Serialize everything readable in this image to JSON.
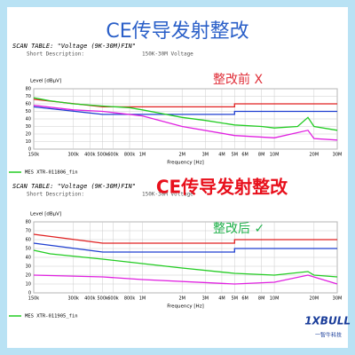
{
  "title": "CE传导发射整改",
  "overlay_title": "CE传导发射整改",
  "logo": {
    "mark": "1XBULL",
    "name": "一智牛科技"
  },
  "chart_data": [
    {
      "type": "line",
      "scan_table": "SCAN TABLE: \"Voltage (9K-30M)FIN\"",
      "short_description_label": "Short Description:",
      "short_description": "150K-30M Voltage",
      "annotation": "整改前 X",
      "annotation_color": "#e0303a",
      "ylabel": "Level [dBμV]",
      "xlabel": "Frequency [Hz]",
      "xscale": "log",
      "grid": true,
      "xlim": [
        150000,
        30000000
      ],
      "xticks": [
        {
          "value": 150000,
          "label": "150k"
        },
        {
          "value": 300000,
          "label": "300k"
        },
        {
          "value": 400000,
          "label": "400k"
        },
        {
          "value": 500000,
          "label": "500k"
        },
        {
          "value": 600000,
          "label": "600k"
        },
        {
          "value": 800000,
          "label": "800k"
        },
        {
          "value": 1000000,
          "label": "1M"
        },
        {
          "value": 2000000,
          "label": "2M"
        },
        {
          "value": 3000000,
          "label": "3M"
        },
        {
          "value": 4000000,
          "label": "4M"
        },
        {
          "value": 5000000,
          "label": "5M"
        },
        {
          "value": 6000000,
          "label": "6M"
        },
        {
          "value": 8000000,
          "label": "8M"
        },
        {
          "value": 10000000,
          "label": "10M"
        },
        {
          "value": 20000000,
          "label": "20M"
        },
        {
          "value": 30000000,
          "label": "30M"
        }
      ],
      "ylim": [
        0,
        80
      ],
      "yticks": [
        0,
        10,
        20,
        30,
        40,
        50,
        60,
        70,
        80
      ],
      "series": [
        {
          "color": "#e02020",
          "x": [
            150000,
            500000,
            5000000,
            5000000,
            30000000
          ],
          "values": [
            66,
            56,
            56,
            60,
            60
          ]
        },
        {
          "color": "#1f3fd0",
          "x": [
            150000,
            500000,
            5000000,
            5000000,
            30000000
          ],
          "values": [
            56,
            46,
            46,
            50,
            50
          ]
        },
        {
          "name": "MES XTR-011806_fin",
          "color": "#22cc22",
          "x": [
            150000,
            200000,
            300000,
            500000,
            800000,
            1000000,
            2000000,
            3000000,
            5000000,
            8000000,
            10000000,
            15000000,
            18000000,
            20000000,
            30000000
          ],
          "values": [
            68,
            64,
            60,
            57,
            55,
            52,
            42,
            38,
            32,
            30,
            28,
            30,
            42,
            30,
            25
          ]
        },
        {
          "color": "#e020e0",
          "x": [
            150000,
            300000,
            500000,
            1000000,
            2000000,
            5000000,
            10000000,
            18000000,
            20000000,
            30000000
          ],
          "values": [
            58,
            52,
            50,
            44,
            30,
            18,
            15,
            25,
            14,
            12
          ]
        }
      ]
    },
    {
      "type": "line",
      "scan_table": "SCAN TABLE: \"Voltage (9K-30M)FIN\"",
      "short_description_label": "Short Description:",
      "short_description": "150K-30M Voltage",
      "annotation": "整改后 ✓",
      "annotation_color": "#22b24c",
      "ylabel": "Level [dBμV]",
      "xlabel": "Frequency [Hz]",
      "xscale": "log",
      "grid": true,
      "xlim": [
        150000,
        30000000
      ],
      "xticks": [
        {
          "value": 150000,
          "label": "150k"
        },
        {
          "value": 300000,
          "label": "300k"
        },
        {
          "value": 400000,
          "label": "400k"
        },
        {
          "value": 500000,
          "label": "500k"
        },
        {
          "value": 600000,
          "label": "600k"
        },
        {
          "value": 800000,
          "label": "800k"
        },
        {
          "value": 1000000,
          "label": "1M"
        },
        {
          "value": 2000000,
          "label": "2M"
        },
        {
          "value": 3000000,
          "label": "3M"
        },
        {
          "value": 4000000,
          "label": "4M"
        },
        {
          "value": 5000000,
          "label": "5M"
        },
        {
          "value": 6000000,
          "label": "6M"
        },
        {
          "value": 8000000,
          "label": "8M"
        },
        {
          "value": 10000000,
          "label": "10M"
        },
        {
          "value": 20000000,
          "label": "20M"
        },
        {
          "value": 30000000,
          "label": "30M"
        }
      ],
      "ylim": [
        0,
        80
      ],
      "yticks": [
        0,
        10,
        20,
        30,
        40,
        50,
        60,
        70,
        80
      ],
      "series": [
        {
          "color": "#e02020",
          "x": [
            150000,
            500000,
            5000000,
            5000000,
            30000000
          ],
          "values": [
            66,
            56,
            56,
            60,
            60
          ]
        },
        {
          "color": "#1f3fd0",
          "x": [
            150000,
            500000,
            5000000,
            5000000,
            30000000
          ],
          "values": [
            56,
            46,
            46,
            50,
            50
          ]
        },
        {
          "name": "MES XTR-011905_fin",
          "color": "#22cc22",
          "x": [
            150000,
            200000,
            500000,
            1000000,
            2000000,
            5000000,
            10000000,
            18000000,
            20000000,
            30000000
          ],
          "values": [
            48,
            44,
            38,
            33,
            28,
            22,
            20,
            24,
            20,
            18
          ]
        },
        {
          "color": "#e020e0",
          "x": [
            150000,
            500000,
            1000000,
            5000000,
            10000000,
            18000000,
            30000000
          ],
          "values": [
            20,
            18,
            15,
            10,
            12,
            20,
            10
          ]
        }
      ]
    }
  ]
}
